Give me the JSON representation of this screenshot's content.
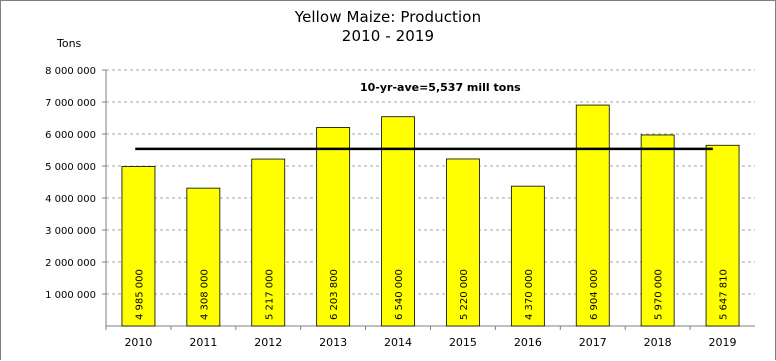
{
  "chart_data": {
    "type": "bar",
    "title": "Yellow Maize: Production",
    "subtitle": "2010 - 2019",
    "ylabel": "Tons",
    "xlabel": "",
    "categories": [
      "2010",
      "2011",
      "2012",
      "2013",
      "2014",
      "2015",
      "2016",
      "2017",
      "2018",
      "2019"
    ],
    "values": [
      4985000,
      4308000,
      5217000,
      6203800,
      6540000,
      5220000,
      4370000,
      6904000,
      5970000,
      5647810
    ],
    "data_labels": [
      "4 985 000",
      "4 308 000",
      "5 217 000",
      "6 203 800",
      "6 540 000",
      "5 220 000",
      "4 370 000",
      "6 904 000",
      "5 970 000",
      "5 647 810"
    ],
    "ylim": [
      0,
      8000000
    ],
    "y_ticks": [
      1000000,
      2000000,
      3000000,
      4000000,
      5000000,
      6000000,
      7000000,
      8000000
    ],
    "y_tick_labels": [
      "1 000 000",
      "2 000 000",
      "3 000 000",
      "4 000 000",
      "5 000 000",
      "6 000 000",
      "7 000 000",
      "8 000 000"
    ],
    "reference_line": {
      "value": 5537000,
      "label": "10-yr-ave=5,537 mill tons",
      "color": "#000000"
    },
    "bar_color": "#ffff00",
    "bar_border_color": "#000000",
    "grid": true,
    "grid_style": "dashed"
  }
}
